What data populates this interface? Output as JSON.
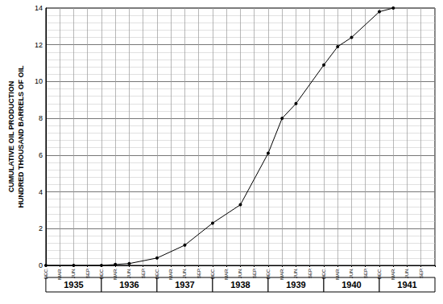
{
  "chart_data": {
    "type": "line",
    "ylabel": "CUMULATIVE OIL PRODUCTION\nHUNDRED THOUSAND BARRELS OF OIL",
    "categories": [
      "DEC.",
      "MAR.",
      "JUN.",
      "SEP.",
      "DEC.",
      "MAR.",
      "JUN.",
      "SEP.",
      "DEC.",
      "MAR.",
      "JUN.",
      "SEP.",
      "DEC.",
      "MAR.",
      "JUN.",
      "SEP.",
      "DEC.",
      "MAR.",
      "JUN.",
      "SEP.",
      "DEC.",
      "MAR.",
      "JUN.",
      "SEP.",
      "DEC.",
      "MAR.",
      "JUN.",
      "SEP.",
      null
    ],
    "values": [
      0,
      null,
      0,
      null,
      0,
      0.05,
      0.1,
      null,
      0.4,
      null,
      1.1,
      null,
      2.3,
      null,
      3.3,
      null,
      6.1,
      8.0,
      8.8,
      null,
      10.9,
      11.9,
      12.4,
      null,
      13.8,
      14.0,
      null,
      null,
      null
    ],
    "years": [
      "1935",
      "1936",
      "1937",
      "1938",
      "1939",
      "1940",
      "1941"
    ],
    "color": "#000000",
    "marker": "circle",
    "ylim": [
      0,
      14
    ],
    "yticks": [
      0,
      2,
      4,
      6,
      8,
      10,
      12,
      14
    ],
    "grid": true
  }
}
